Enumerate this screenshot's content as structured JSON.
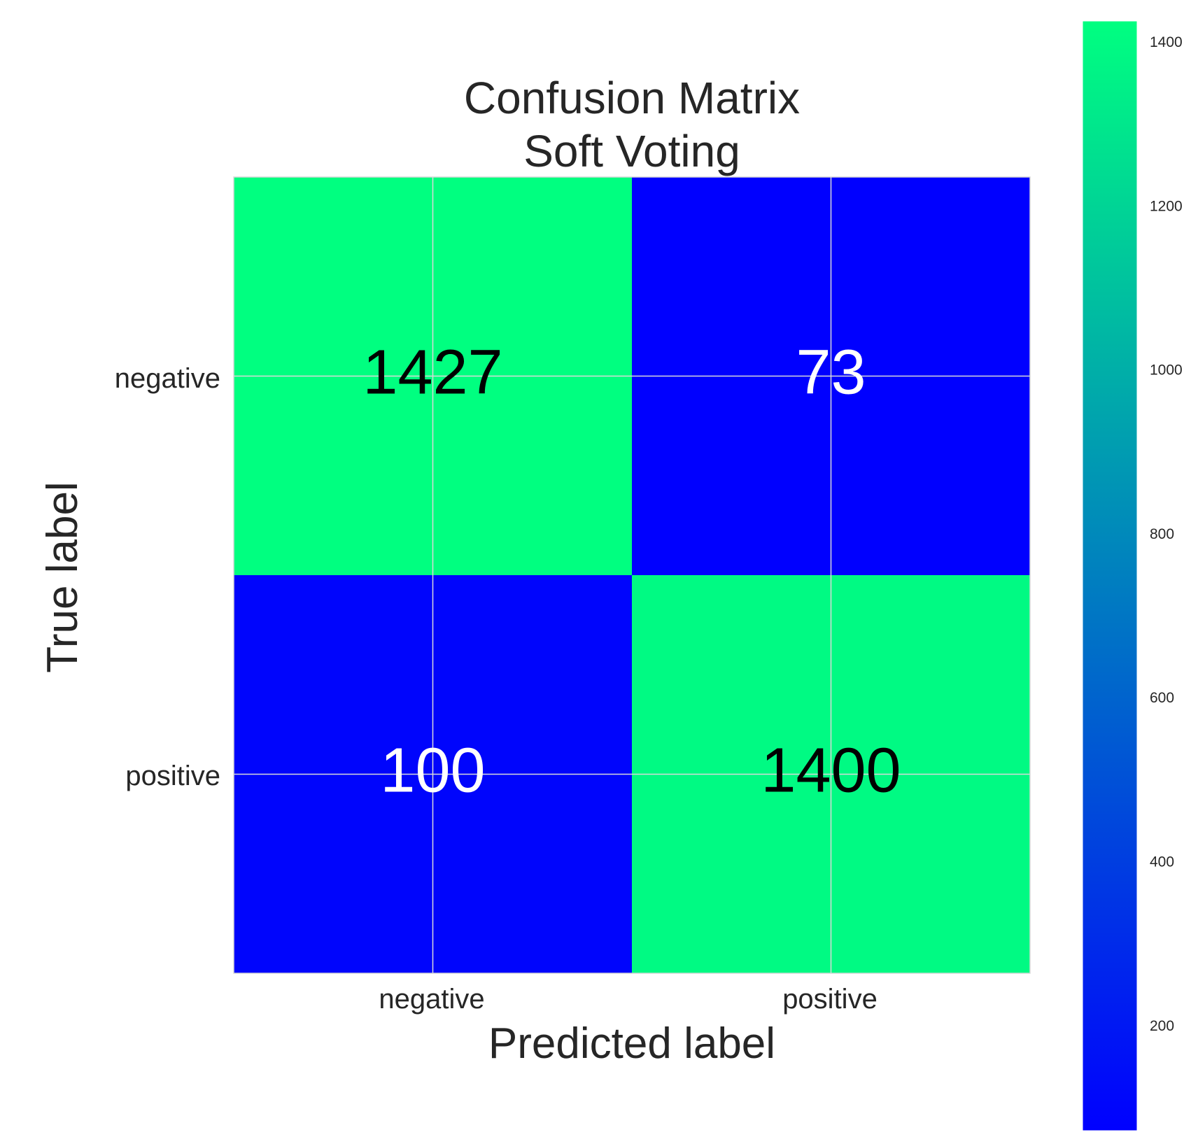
{
  "chart_data": {
    "type": "heatmap",
    "title": "Confusion Matrix\nSoft Voting",
    "title_lines": [
      "Confusion Matrix",
      "Soft Voting"
    ],
    "xlabel": "Predicted label",
    "ylabel": "True label",
    "x_categories": [
      "negative",
      "positive"
    ],
    "y_categories": [
      "negative",
      "positive"
    ],
    "values": [
      [
        1427,
        73
      ],
      [
        100,
        1400
      ]
    ],
    "colormap": "winter",
    "colormap_low": "#0000ff",
    "colormap_high": "#00ff80",
    "value_range": [
      73,
      1427
    ],
    "colorbar_ticks": [
      200,
      400,
      600,
      800,
      1000,
      1200,
      1400
    ],
    "text_color_on_high": "#000000",
    "text_color_on_low": "#ffffff",
    "grid": true,
    "grid_color": "#d9d9d9",
    "label_color": "#262626"
  }
}
